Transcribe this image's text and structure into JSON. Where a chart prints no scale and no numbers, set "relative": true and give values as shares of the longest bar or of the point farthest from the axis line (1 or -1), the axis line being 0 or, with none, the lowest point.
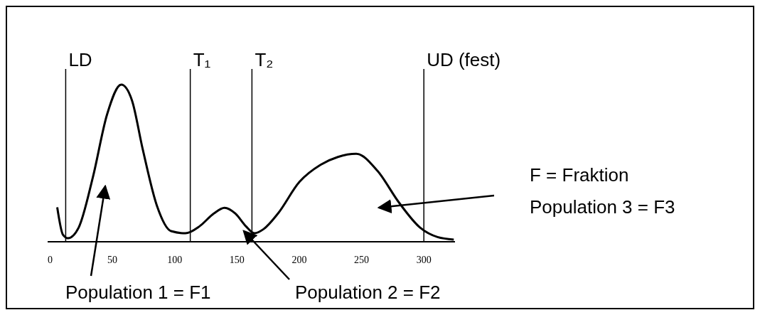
{
  "chart_data": {
    "type": "line",
    "relative": true,
    "x": [
      5.7,
      10.3,
      14.3,
      22.9,
      34.3,
      45.7,
      57.1,
      65.7,
      74.3,
      85.7,
      97.1,
      108.6,
      120,
      131.4,
      140,
      148.6,
      157.1,
      164,
      171.4,
      182.9,
      200,
      217.1,
      231,
      245.7,
      262.9,
      280,
      297,
      311,
      324
    ],
    "series": [
      {
        "color": "#000000",
        "values": [
          0.22,
          0.045,
          0.023,
          0.09,
          0.41,
          0.81,
          1,
          0.9,
          0.59,
          0.23,
          0.068,
          0.054,
          0.099,
          0.18,
          0.216,
          0.18,
          0.099,
          0.054,
          0.081,
          0.18,
          0.38,
          0.49,
          0.54,
          0.56,
          0.45,
          0.25,
          0.09,
          0.03,
          0.014
        ]
      }
    ],
    "xlim": [
      -2,
      325
    ],
    "xticks": [
      0,
      50,
      100,
      150,
      200,
      250,
      300
    ],
    "ref_lines": [
      {
        "axis": "x",
        "value": 12.5,
        "label": "LD",
        "color": "#000000"
      },
      {
        "axis": "x",
        "value": 112.5,
        "label": "T₁",
        "color": "#000000"
      },
      {
        "axis": "x",
        "value": 162,
        "label": "T₂",
        "color": "#000000"
      },
      {
        "axis": "x",
        "value": 300,
        "label": "UD (fest)",
        "color": "#000000"
      }
    ],
    "annotations": [
      "F = Fraktion",
      "Population 3 = F3",
      "Population 1 = F1",
      "Population 2 = F2"
    ],
    "grid": false,
    "legend": false,
    "marker": "none",
    "line_style": "solid"
  }
}
